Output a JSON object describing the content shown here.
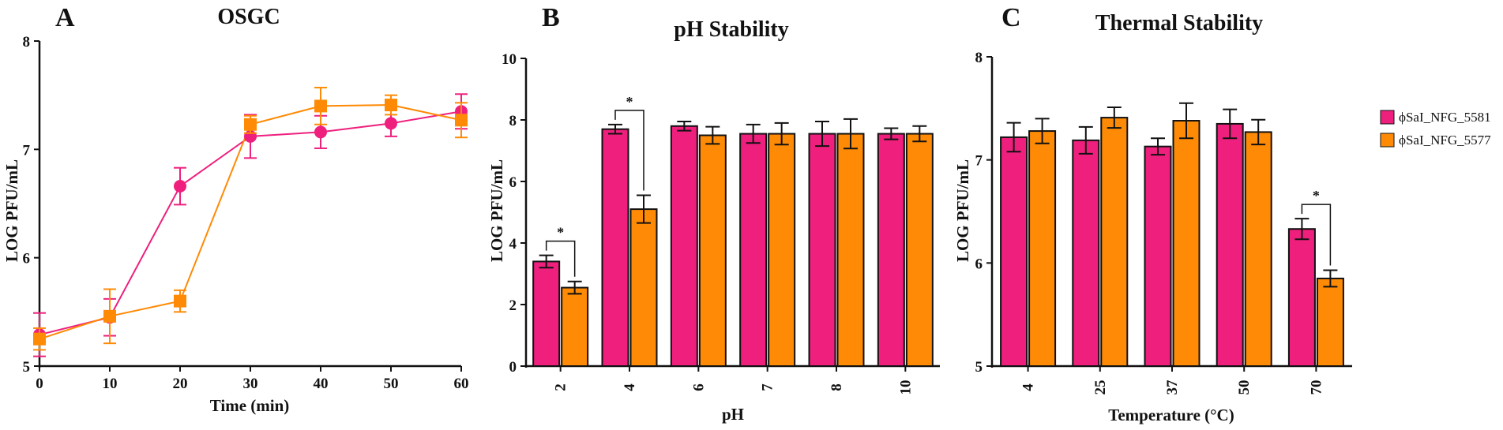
{
  "colors": {
    "series1": "#ee1f7d",
    "series2": "#ff8a05",
    "axis": "#111111"
  },
  "chart_data": [
    {
      "panel": "A",
      "type": "line",
      "title": "OSGC",
      "xlabel": "Time (min)",
      "ylabel": "LOG PFU/mL",
      "xlim": [
        0,
        60
      ],
      "ylim": [
        5,
        8
      ],
      "xticks": [
        "0",
        "10",
        "20",
        "30",
        "40",
        "50",
        "60"
      ],
      "yticks": [
        "5",
        "6",
        "7",
        "8"
      ],
      "x": [
        0,
        10,
        20,
        30,
        40,
        50,
        60
      ],
      "series": [
        {
          "name": "ϕSaI_NFG_5581",
          "marker": "circle",
          "values": [
            5.29,
            5.45,
            6.66,
            7.12,
            7.16,
            7.24,
            7.35
          ],
          "errors": [
            0.2,
            0.17,
            0.17,
            0.2,
            0.15,
            0.12,
            0.16
          ]
        },
        {
          "name": "ϕSaI_NFG_5577",
          "marker": "square",
          "values": [
            5.25,
            5.46,
            5.6,
            7.23,
            7.4,
            7.41,
            7.27
          ],
          "errors": [
            0.1,
            0.25,
            0.1,
            0.08,
            0.17,
            0.09,
            0.16
          ]
        }
      ]
    },
    {
      "panel": "B",
      "type": "bar",
      "title": "pH Stability",
      "xlabel": "pH",
      "ylabel": "LOG PFU/mL",
      "ylim": [
        0,
        10
      ],
      "yticks": [
        "0",
        "2",
        "4",
        "6",
        "8",
        "10"
      ],
      "categories": [
        "2",
        "4",
        "6",
        "7",
        "8",
        "10"
      ],
      "series": [
        {
          "name": "ϕSaI_NFG_5581",
          "values": [
            3.4,
            7.7,
            7.8,
            7.55,
            7.55,
            7.55
          ],
          "errors": [
            0.2,
            0.15,
            0.15,
            0.3,
            0.4,
            0.18
          ]
        },
        {
          "name": "ϕSaI_NFG_5577",
          "values": [
            2.55,
            5.1,
            7.5,
            7.55,
            7.55,
            7.55
          ],
          "errors": [
            0.2,
            0.45,
            0.28,
            0.35,
            0.48,
            0.25
          ]
        }
      ],
      "significance": [
        {
          "category_index": 0,
          "label": "*"
        },
        {
          "category_index": 1,
          "label": "*"
        }
      ]
    },
    {
      "panel": "C",
      "type": "bar",
      "title": "Thermal Stability",
      "xlabel": "Temperature (°C)",
      "ylabel": "LOG PFU/mL",
      "ylim": [
        5,
        8
      ],
      "yticks": [
        "5",
        "6",
        "7",
        "8"
      ],
      "categories": [
        "4",
        "25",
        "37",
        "50",
        "70"
      ],
      "series": [
        {
          "name": "ϕSaI_NFG_5581",
          "values": [
            7.22,
            7.19,
            7.13,
            7.35,
            6.33
          ],
          "errors": [
            0.14,
            0.13,
            0.08,
            0.14,
            0.1
          ]
        },
        {
          "name": "ϕSaI_NFG_5577",
          "values": [
            7.28,
            7.41,
            7.38,
            7.27,
            5.85
          ],
          "errors": [
            0.12,
            0.1,
            0.17,
            0.12,
            0.08
          ]
        }
      ],
      "significance": [
        {
          "category_index": 4,
          "label": "*"
        }
      ],
      "legend": {
        "placement": "right",
        "entries": [
          "ϕSaI_NFG_5581",
          "ϕSaI_NFG_5577"
        ]
      }
    }
  ]
}
